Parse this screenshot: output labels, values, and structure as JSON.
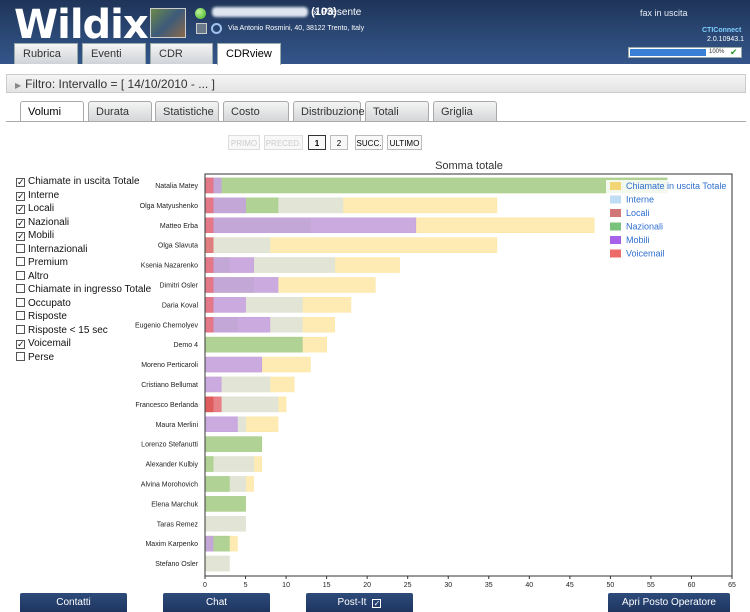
{
  "app": {
    "logo": "Wildix"
  },
  "user": {
    "extension": "(103)",
    "separator": "»",
    "presence": "Presente",
    "address": "Via Antonio Rosmini, 40, 38122 Trento, Italy"
  },
  "header_right": {
    "fax": "fax in uscita",
    "brand": "CTIConnect",
    "version": "2.0.10943.1",
    "progress_pct": 100,
    "progress_label": "100%"
  },
  "main_tabs": [
    {
      "label": "Rubrica",
      "active": false
    },
    {
      "label": "Eventi",
      "active": false
    },
    {
      "label": "CDR",
      "active": false
    },
    {
      "label": "CDRview",
      "active": true
    }
  ],
  "filter": {
    "label": "Filtro: Intervallo = [ 14/10/2010 - ... ]"
  },
  "sub_tabs": [
    {
      "label": "Volumi",
      "active": true
    },
    {
      "label": "Durata",
      "active": false
    },
    {
      "label": "Statistiche",
      "active": false
    },
    {
      "label": "Costo",
      "active": false
    },
    {
      "label": "Distribuzione",
      "active": false
    },
    {
      "label": "Totali",
      "active": false
    },
    {
      "label": "Griglia",
      "active": false
    }
  ],
  "pager": [
    {
      "label": "PRIMO",
      "state": "disabled"
    },
    {
      "label": "PRECED.",
      "state": "disabled"
    },
    {
      "label": "1",
      "state": "current"
    },
    {
      "label": "2",
      "state": "normal"
    },
    {
      "label": "SUCC.",
      "state": "normal"
    },
    {
      "label": "ULTIMO",
      "state": "normal"
    }
  ],
  "filters": [
    {
      "label": "Chiamate in uscita Totale",
      "checked": true
    },
    {
      "label": "Interne",
      "checked": true
    },
    {
      "label": "Locali",
      "checked": true
    },
    {
      "label": "Nazionali",
      "checked": true
    },
    {
      "label": "Mobili",
      "checked": true
    },
    {
      "label": "Internazionali",
      "checked": false
    },
    {
      "label": "Premium",
      "checked": false
    },
    {
      "label": "Altro",
      "checked": false
    },
    {
      "label": "Chiamate in ingresso Totale",
      "checked": false
    },
    {
      "label": "Occupato",
      "checked": false
    },
    {
      "label": "Risposte",
      "checked": false
    },
    {
      "label": "Risposte < 15 sec",
      "checked": false
    },
    {
      "label": "Voicemail",
      "checked": true
    },
    {
      "label": "Perse",
      "checked": false
    }
  ],
  "chart_data": {
    "type": "bar",
    "orientation": "horizontal",
    "overlaid": true,
    "title": "Somma totale",
    "xlim": [
      0,
      65
    ],
    "xticks": [
      0,
      5,
      10,
      15,
      20,
      25,
      30,
      35,
      40,
      45,
      50,
      55,
      60,
      65
    ],
    "grid": false,
    "legend_position": "top-right",
    "categories": [
      "Natalia Matey",
      "Olga Matyushenko",
      "Matteo Erba",
      "Olga Slavuta",
      "Ksenia Nazarenko",
      "Dimitri Osler",
      "Daria Koval",
      "Eugenio Chernolyev",
      "Demo 4",
      "Moreno Perticaroli",
      "Cristiano Bellumat",
      "Francesco Berlanda",
      "Maura Merlini",
      "Lorenzo Stefanutti",
      "Alexander Kulbiy",
      "Alvina Morohovich",
      "Elena Marchuk",
      "Taras Remez",
      "Maxim Karpenko",
      "Stefano Osler"
    ],
    "series": [
      {
        "name": "Chiamate in uscita Totale",
        "color": "#fde7a6",
        "values": [
          57,
          36,
          48,
          36,
          24,
          21,
          18,
          16,
          15,
          13,
          11,
          10,
          9,
          7,
          7,
          6,
          5,
          5,
          4,
          3
        ]
      },
      {
        "name": "Interne",
        "color": "#dde3da",
        "values": [
          57,
          17,
          26,
          8,
          16,
          9,
          12,
          12,
          12,
          7,
          8,
          9,
          5,
          7,
          6,
          5,
          5,
          5,
          3,
          3
        ]
      },
      {
        "name": "Locali",
        "color": "#e8707a",
        "values": [
          1,
          1,
          1,
          1,
          1,
          1,
          1,
          1,
          0,
          0,
          0,
          2,
          0,
          0,
          0,
          0,
          0,
          0,
          0,
          0
        ]
      },
      {
        "name": "Nazionali",
        "color": "#a8cf8a",
        "values": [
          57,
          9,
          13,
          1,
          3,
          6,
          1,
          4,
          12,
          0,
          0,
          1,
          0,
          7,
          1,
          3,
          5,
          0,
          3,
          0
        ]
      },
      {
        "name": "Mobili",
        "color": "#c7a0e2",
        "values": [
          2,
          5,
          26,
          0,
          6,
          9,
          5,
          8,
          0,
          7,
          2,
          0,
          4,
          0,
          0,
          0,
          0,
          0,
          1,
          0
        ]
      },
      {
        "name": "Voicemail",
        "color": "#e05757",
        "values": [
          0,
          0,
          0,
          0,
          0,
          0,
          0,
          0,
          0,
          0,
          0,
          1,
          0,
          0,
          0,
          0,
          0,
          0,
          0,
          0
        ]
      }
    ],
    "legend_colors": [
      "#f2c94c",
      "#a9d1f2",
      "#c24a4a",
      "#4caf50",
      "#8a2be2",
      "#e53935"
    ]
  },
  "bottom_buttons": [
    {
      "label": "Contatti"
    },
    {
      "label": "Chat"
    },
    {
      "label": "Post-It",
      "checkbox": "☑"
    },
    {
      "label": "Apri Posto Operatore"
    }
  ]
}
